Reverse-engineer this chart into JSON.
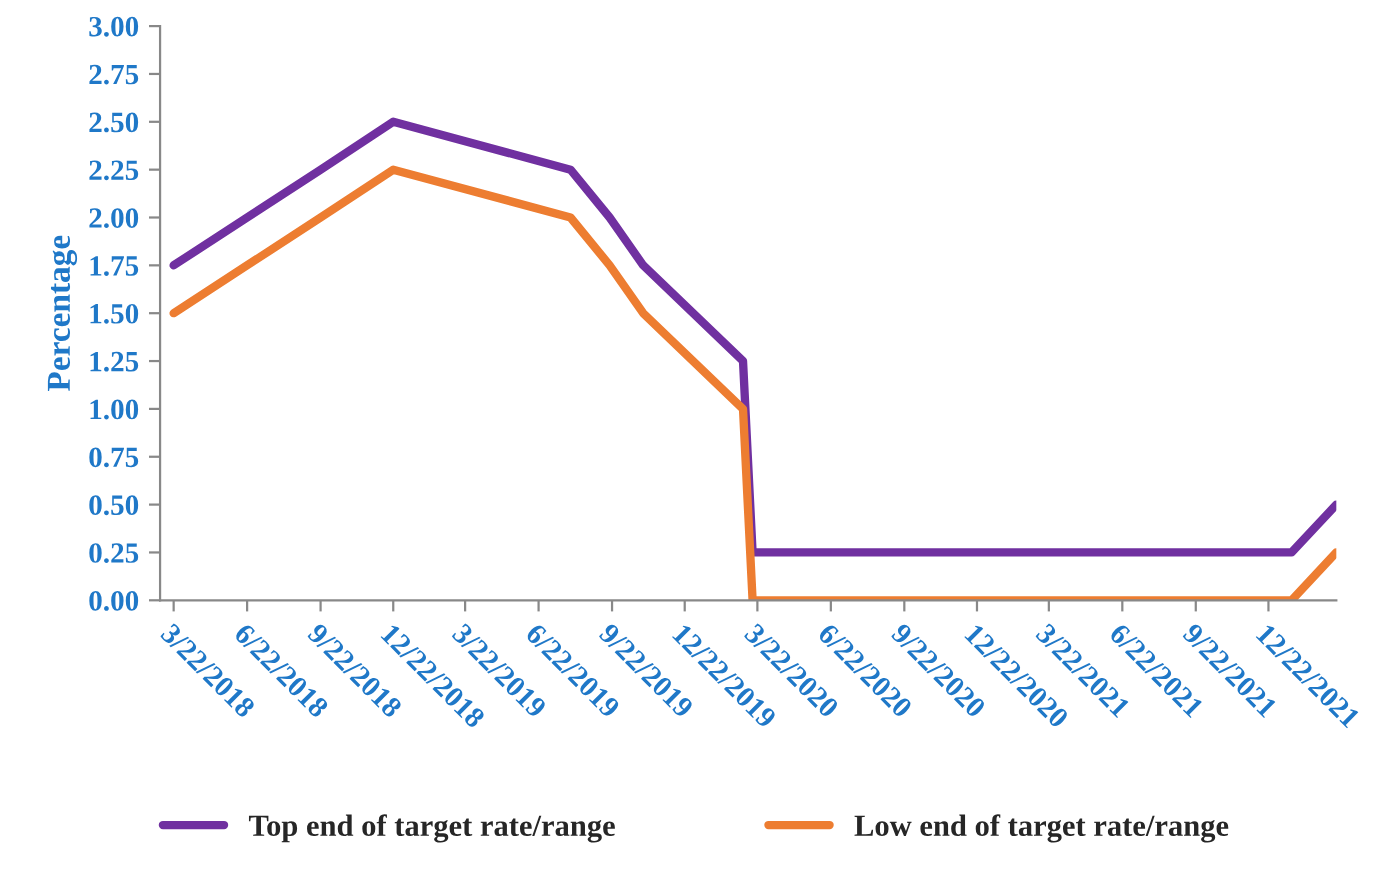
{
  "chart_data": {
    "type": "line",
    "ylabel": "Percentage",
    "x": [
      "2018-03-22",
      "2018-06-22",
      "2018-09-22",
      "2018-12-22",
      "2019-08-01",
      "2019-09-19",
      "2019-10-31",
      "2020-03-04",
      "2020-03-16",
      "2022-01-20",
      "2022-03-17"
    ],
    "series": [
      {
        "name": "Top end of target rate/range",
        "color": "#7030a0",
        "values": [
          1.75,
          2.0,
          2.25,
          2.5,
          2.25,
          2.0,
          1.75,
          1.25,
          0.25,
          0.25,
          0.5
        ]
      },
      {
        "name": "Low end of target rate/range",
        "color": "#ed7d31",
        "values": [
          1.5,
          1.75,
          2.0,
          2.25,
          2.0,
          1.75,
          1.5,
          1.0,
          0.0,
          0.0,
          0.25
        ]
      }
    ],
    "xlim": [
      "2018-03-05",
      "2022-03-17"
    ],
    "xticks": [
      {
        "value": "2018-03-22",
        "label": "3/22/2018"
      },
      {
        "value": "2018-06-22",
        "label": "6/22/2018"
      },
      {
        "value": "2018-09-22",
        "label": "9/22/2018"
      },
      {
        "value": "2018-12-22",
        "label": "12/22/2018"
      },
      {
        "value": "2019-03-22",
        "label": "3/22/2019"
      },
      {
        "value": "2019-06-22",
        "label": "6/22/2019"
      },
      {
        "value": "2019-09-22",
        "label": "9/22/2019"
      },
      {
        "value": "2019-12-22",
        "label": "12/22/2019"
      },
      {
        "value": "2020-03-22",
        "label": "3/22/2020"
      },
      {
        "value": "2020-06-22",
        "label": "6/22/2020"
      },
      {
        "value": "2020-09-22",
        "label": "9/22/2020"
      },
      {
        "value": "2020-12-22",
        "label": "12/22/2020"
      },
      {
        "value": "2021-03-22",
        "label": "3/22/2021"
      },
      {
        "value": "2021-06-22",
        "label": "6/22/2021"
      },
      {
        "value": "2021-09-22",
        "label": "9/22/2021"
      },
      {
        "value": "2021-12-22",
        "label": "12/22/2021"
      }
    ],
    "ylim": [
      0,
      3
    ],
    "yticks": [
      {
        "value": 0,
        "label": "0.00"
      },
      {
        "value": 0.25,
        "label": "0.25"
      },
      {
        "value": 0.5,
        "label": "0.50"
      },
      {
        "value": 0.75,
        "label": "0.75"
      },
      {
        "value": 1,
        "label": "1.00"
      },
      {
        "value": 1.25,
        "label": "1.25"
      },
      {
        "value": 1.5,
        "label": "1.50"
      },
      {
        "value": 1.75,
        "label": "1.75"
      },
      {
        "value": 2,
        "label": "2.00"
      },
      {
        "value": 2.25,
        "label": "2.25"
      },
      {
        "value": 2.5,
        "label": "2.50"
      },
      {
        "value": 2.75,
        "label": "2.75"
      },
      {
        "value": 3,
        "label": "3.00"
      }
    ],
    "grid": false,
    "legend": "bottom",
    "marker": "none",
    "line_style": "solid"
  }
}
